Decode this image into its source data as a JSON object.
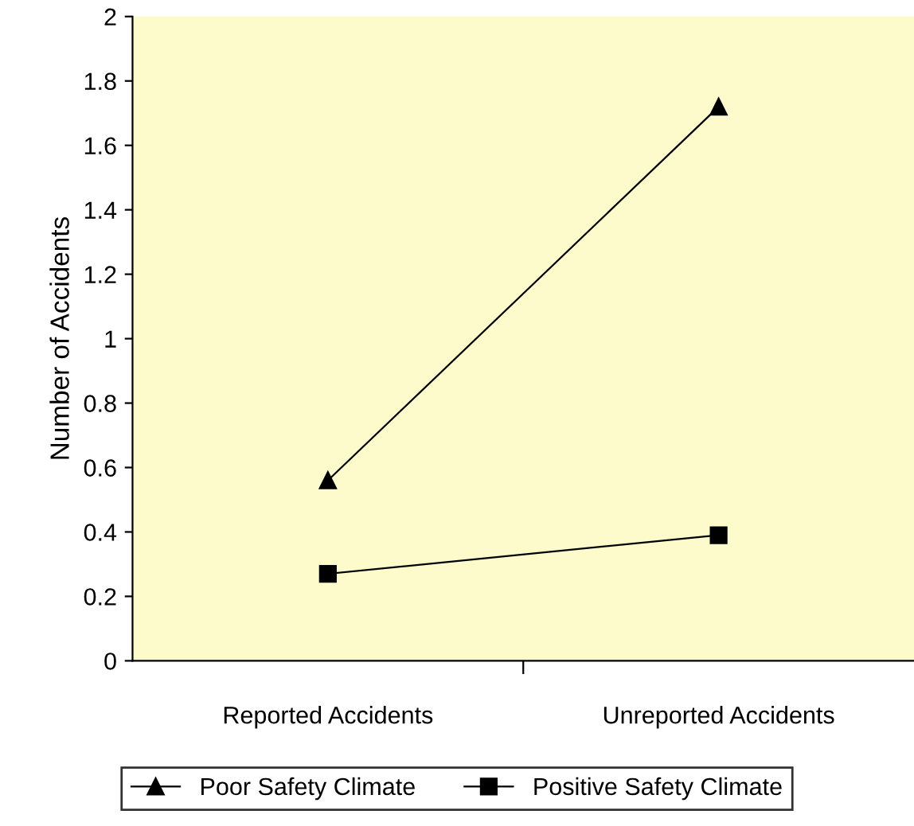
{
  "chart_data": {
    "type": "line",
    "ylabel": "Number of Accidents",
    "categories": [
      "Reported Accidents",
      "Unreported Accidents"
    ],
    "series": [
      {
        "name": "Poor Safety Climate",
        "color": "#000000",
        "marker": "triangle",
        "values": [
          0.56,
          1.72
        ]
      },
      {
        "name": "Positive Safety Climate",
        "color": "#000000",
        "marker": "square",
        "values": [
          0.27,
          0.39
        ]
      }
    ],
    "ylim": [
      0,
      2
    ],
    "yticks": [
      0,
      {
        "value": 0.2,
        "label": "0.2"
      },
      {
        "value": 0.4,
        "label": "0.4"
      },
      {
        "value": 0.6,
        "label": "0.6"
      },
      {
        "value": 0.8,
        "label": "0.8"
      },
      1,
      {
        "value": 1.2,
        "label": "1.2"
      },
      {
        "value": 1.4,
        "label": "1.4"
      },
      {
        "value": 1.6,
        "label": "1.6"
      },
      {
        "value": 1.8,
        "label": "1.8"
      },
      2
    ],
    "grid": false,
    "legend": "bottom",
    "line_style": "solid"
  }
}
